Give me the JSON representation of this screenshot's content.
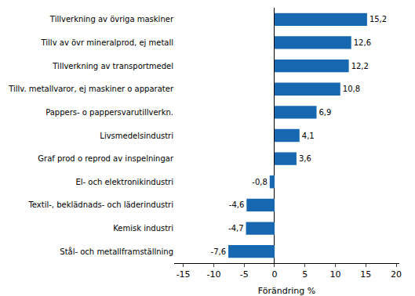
{
  "chart_data": {
    "type": "bar",
    "orientation": "horizontal",
    "x_label": "Förändring %",
    "categories": [
      "Tillverkning av övriga maskiner",
      "Tillv av övr mineralprod, ej metall",
      "Tillverkning av transportmedel",
      "Tillv. metallvaror, ej maskiner o apparater",
      "Pappers- o pappersvarutillverkn.",
      "Livsmedelsindustri",
      "Graf prod o reprod av inspelningar",
      "El- och elektronikindustri",
      "Textil-, beklädnads- och läderindustri",
      "Kemisk industri",
      "Stål- och metallframställning"
    ],
    "values": [
      15.2,
      12.6,
      12.2,
      10.8,
      6.9,
      4.1,
      3.6,
      -0.8,
      -4.6,
      -4.7,
      -7.6
    ],
    "value_labels": [
      "15,2",
      "12,6",
      "12,2",
      "10,8",
      "6,9",
      "4,1",
      "3,6",
      "-0,8",
      "-4,6",
      "-4,7",
      "-7,6"
    ],
    "color": "#1768b0",
    "xlim": [
      -16.5,
      20.5
    ],
    "xticks": [
      -15,
      -10,
      -5,
      0,
      5,
      10,
      15,
      20
    ],
    "grid": false,
    "data_labels": true
  }
}
